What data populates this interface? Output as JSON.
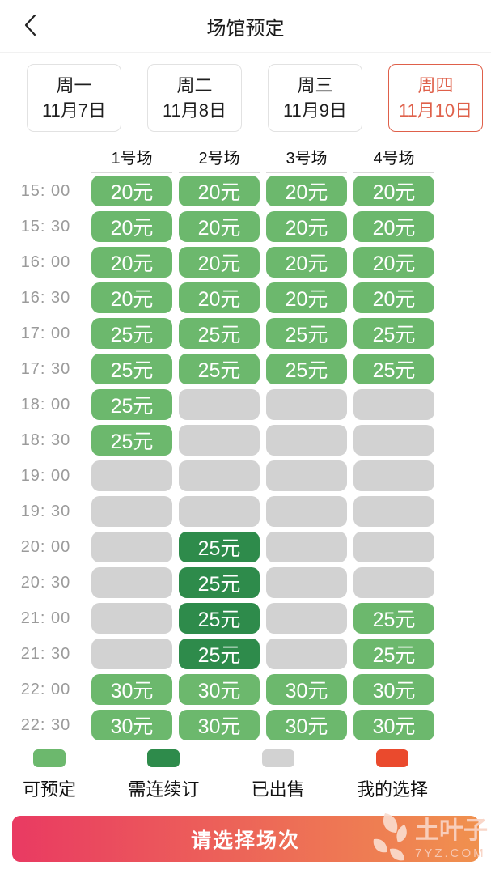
{
  "header": {
    "title": "场馆预定"
  },
  "icons": {
    "back": "chevron-left-icon",
    "watermark_logo": "leaf-icon"
  },
  "date_tabs": [
    {
      "weekday": "周一",
      "date": "11月7日",
      "selected": false
    },
    {
      "weekday": "周二",
      "date": "11月8日",
      "selected": false
    },
    {
      "weekday": "周三",
      "date": "11月9日",
      "selected": false
    },
    {
      "weekday": "周四",
      "date": "11月10日",
      "selected": true
    }
  ],
  "courts": [
    "1号场",
    "2号场",
    "3号场",
    "4号场"
  ],
  "colors": {
    "available": "#6cb86d",
    "consecutive": "#2e8b4b",
    "sold": "#d2d2d2",
    "selected": "#ea4a2d",
    "tab_selected": "#df604a",
    "button_gradient_start": "#e93a62",
    "button_gradient_end": "#f0914e"
  },
  "schedule": {
    "rows": [
      {
        "time": "15: 00",
        "slots": [
          {
            "state": "available",
            "price": "20元"
          },
          {
            "state": "available",
            "price": "20元"
          },
          {
            "state": "available",
            "price": "20元"
          },
          {
            "state": "available",
            "price": "20元"
          }
        ]
      },
      {
        "time": "15: 30",
        "slots": [
          {
            "state": "available",
            "price": "20元"
          },
          {
            "state": "available",
            "price": "20元"
          },
          {
            "state": "available",
            "price": "20元"
          },
          {
            "state": "available",
            "price": "20元"
          }
        ]
      },
      {
        "time": "16: 00",
        "slots": [
          {
            "state": "available",
            "price": "20元"
          },
          {
            "state": "available",
            "price": "20元"
          },
          {
            "state": "available",
            "price": "20元"
          },
          {
            "state": "available",
            "price": "20元"
          }
        ]
      },
      {
        "time": "16: 30",
        "slots": [
          {
            "state": "available",
            "price": "20元"
          },
          {
            "state": "available",
            "price": "20元"
          },
          {
            "state": "available",
            "price": "20元"
          },
          {
            "state": "available",
            "price": "20元"
          }
        ]
      },
      {
        "time": "17: 00",
        "slots": [
          {
            "state": "available",
            "price": "25元"
          },
          {
            "state": "available",
            "price": "25元"
          },
          {
            "state": "available",
            "price": "25元"
          },
          {
            "state": "available",
            "price": "25元"
          }
        ]
      },
      {
        "time": "17: 30",
        "slots": [
          {
            "state": "available",
            "price": "25元"
          },
          {
            "state": "available",
            "price": "25元"
          },
          {
            "state": "available",
            "price": "25元"
          },
          {
            "state": "available",
            "price": "25元"
          }
        ]
      },
      {
        "time": "18: 00",
        "slots": [
          {
            "state": "available",
            "price": "25元"
          },
          {
            "state": "sold",
            "price": ""
          },
          {
            "state": "sold",
            "price": ""
          },
          {
            "state": "sold",
            "price": ""
          }
        ]
      },
      {
        "time": "18: 30",
        "slots": [
          {
            "state": "available",
            "price": "25元"
          },
          {
            "state": "sold",
            "price": ""
          },
          {
            "state": "sold",
            "price": ""
          },
          {
            "state": "sold",
            "price": ""
          }
        ]
      },
      {
        "time": "19: 00",
        "slots": [
          {
            "state": "sold",
            "price": ""
          },
          {
            "state": "sold",
            "price": ""
          },
          {
            "state": "sold",
            "price": ""
          },
          {
            "state": "sold",
            "price": ""
          }
        ]
      },
      {
        "time": "19: 30",
        "slots": [
          {
            "state": "sold",
            "price": ""
          },
          {
            "state": "sold",
            "price": ""
          },
          {
            "state": "sold",
            "price": ""
          },
          {
            "state": "sold",
            "price": ""
          }
        ]
      },
      {
        "time": "20: 00",
        "slots": [
          {
            "state": "sold",
            "price": ""
          },
          {
            "state": "consecutive",
            "price": "25元"
          },
          {
            "state": "sold",
            "price": ""
          },
          {
            "state": "sold",
            "price": ""
          }
        ]
      },
      {
        "time": "20: 30",
        "slots": [
          {
            "state": "sold",
            "price": ""
          },
          {
            "state": "consecutive",
            "price": "25元"
          },
          {
            "state": "sold",
            "price": ""
          },
          {
            "state": "sold",
            "price": ""
          }
        ]
      },
      {
        "time": "21: 00",
        "slots": [
          {
            "state": "sold",
            "price": ""
          },
          {
            "state": "consecutive",
            "price": "25元"
          },
          {
            "state": "sold",
            "price": ""
          },
          {
            "state": "available",
            "price": "25元"
          }
        ]
      },
      {
        "time": "21: 30",
        "slots": [
          {
            "state": "sold",
            "price": ""
          },
          {
            "state": "consecutive",
            "price": "25元"
          },
          {
            "state": "sold",
            "price": ""
          },
          {
            "state": "available",
            "price": "25元"
          }
        ]
      },
      {
        "time": "22: 00",
        "slots": [
          {
            "state": "available",
            "price": "30元"
          },
          {
            "state": "available",
            "price": "30元"
          },
          {
            "state": "available",
            "price": "30元"
          },
          {
            "state": "available",
            "price": "30元"
          }
        ]
      },
      {
        "time": "22: 30",
        "slots": [
          {
            "state": "available",
            "price": "30元"
          },
          {
            "state": "available",
            "price": "30元"
          },
          {
            "state": "available",
            "price": "30元"
          },
          {
            "state": "available",
            "price": "30元"
          }
        ]
      }
    ]
  },
  "legend": [
    {
      "label": "可预定",
      "state": "available"
    },
    {
      "label": "需连续订",
      "state": "consecutive"
    },
    {
      "label": "已出售",
      "state": "sold"
    },
    {
      "label": "我的选择",
      "state": "selected"
    }
  ],
  "footer": {
    "button_label": "请选择场次"
  },
  "watermark": {
    "name": "土叶子",
    "site": "7YZ.COM"
  }
}
